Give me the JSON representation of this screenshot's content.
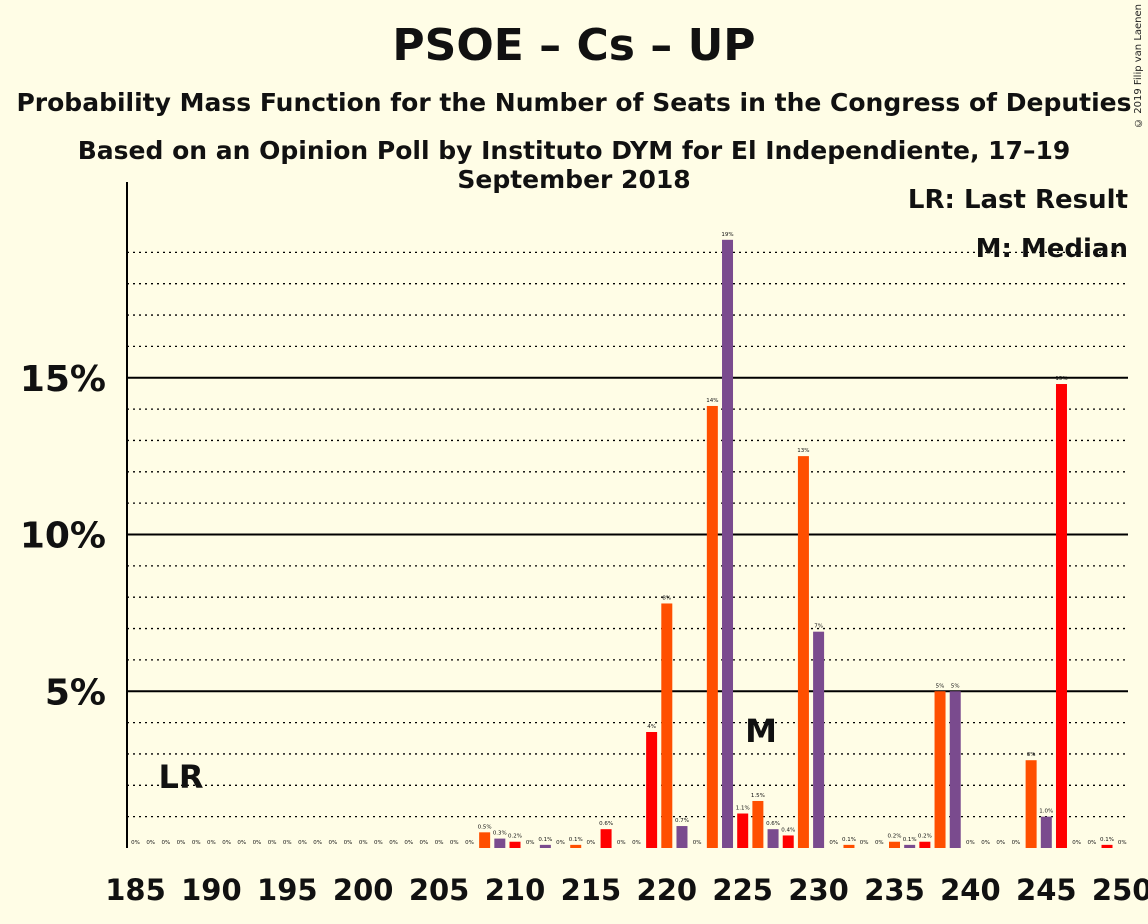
{
  "title": "PSOE – Cs – UP",
  "subtitle": "Probability Mass Function for the Number of Seats in the Congress of Deputies",
  "subtitle2": "Based on an Opinion Poll by Instituto DYM for El Independiente, 17–19 September 2018",
  "copyright": "© 2019 Filip van Laenen",
  "legend": {
    "lr": "LR: Last Result",
    "median": "M: Median"
  },
  "markers": {
    "lr_label": "LR",
    "lr_seat": 188,
    "median_label": "M",
    "median_seat": 227
  },
  "colors": {
    "red": "#ff0000",
    "orange": "#ff4f00",
    "purple": "#7a4b8e",
    "background": "#fffde6"
  },
  "chart_data": {
    "type": "bar",
    "xlabel": "",
    "ylabel": "",
    "xlim": [
      185,
      250
    ],
    "ylim": [
      0,
      21
    ],
    "y_ticks": [
      5,
      10,
      15
    ],
    "y_tick_labels": [
      "5%",
      "10%",
      "15%"
    ],
    "x_ticks": [
      185,
      190,
      195,
      200,
      205,
      210,
      215,
      220,
      225,
      230,
      235,
      240,
      245,
      250
    ],
    "gridlines": "dotted every 1%, solid at 5%, 10%, 15%",
    "bars": [
      {
        "x": 185,
        "value": 0,
        "label": "0%",
        "color": "red"
      },
      {
        "x": 186,
        "value": 0,
        "label": "0%",
        "color": "orange"
      },
      {
        "x": 187,
        "value": 0,
        "label": "0%",
        "color": "purple"
      },
      {
        "x": 188,
        "value": 0,
        "label": "0%",
        "color": "red"
      },
      {
        "x": 189,
        "value": 0,
        "label": "0%",
        "color": "orange"
      },
      {
        "x": 190,
        "value": 0,
        "label": "0%",
        "color": "purple"
      },
      {
        "x": 191,
        "value": 0,
        "label": "0%",
        "color": "red"
      },
      {
        "x": 192,
        "value": 0,
        "label": "0%",
        "color": "orange"
      },
      {
        "x": 193,
        "value": 0,
        "label": "0%",
        "color": "purple"
      },
      {
        "x": 194,
        "value": 0,
        "label": "0%",
        "color": "red"
      },
      {
        "x": 195,
        "value": 0,
        "label": "0%",
        "color": "orange"
      },
      {
        "x": 196,
        "value": 0,
        "label": "0%",
        "color": "purple"
      },
      {
        "x": 197,
        "value": 0,
        "label": "0%",
        "color": "red"
      },
      {
        "x": 198,
        "value": 0,
        "label": "0%",
        "color": "orange"
      },
      {
        "x": 199,
        "value": 0,
        "label": "0%",
        "color": "purple"
      },
      {
        "x": 200,
        "value": 0,
        "label": "0%",
        "color": "red"
      },
      {
        "x": 201,
        "value": 0,
        "label": "0%",
        "color": "orange"
      },
      {
        "x": 202,
        "value": 0,
        "label": "0%",
        "color": "purple"
      },
      {
        "x": 203,
        "value": 0,
        "label": "0%",
        "color": "red"
      },
      {
        "x": 204,
        "value": 0,
        "label": "0%",
        "color": "orange"
      },
      {
        "x": 205,
        "value": 0,
        "label": "0%",
        "color": "purple"
      },
      {
        "x": 206,
        "value": 0,
        "label": "0%",
        "color": "red"
      },
      {
        "x": 207,
        "value": 0,
        "label": "0%",
        "color": "orange"
      },
      {
        "x": 208,
        "value": 0.5,
        "label": "0.5%",
        "color": "orange"
      },
      {
        "x": 209,
        "value": 0.3,
        "label": "0.3%",
        "color": "purple"
      },
      {
        "x": 210,
        "value": 0.2,
        "label": "0.2%",
        "color": "red"
      },
      {
        "x": 211,
        "value": 0,
        "label": "0%",
        "color": "orange"
      },
      {
        "x": 212,
        "value": 0.1,
        "label": "0.1%",
        "color": "purple"
      },
      {
        "x": 213,
        "value": 0,
        "label": "0%",
        "color": "red"
      },
      {
        "x": 214,
        "value": 0.1,
        "label": "0.1%",
        "color": "orange"
      },
      {
        "x": 215,
        "value": 0,
        "label": "0%",
        "color": "purple"
      },
      {
        "x": 216,
        "value": 0.6,
        "label": "0.6%",
        "color": "red"
      },
      {
        "x": 217,
        "value": 0,
        "label": "0%",
        "color": "orange"
      },
      {
        "x": 218,
        "value": 0,
        "label": "0%",
        "color": "purple"
      },
      {
        "x": 219,
        "value": 3.7,
        "label": "4%",
        "color": "red"
      },
      {
        "x": 220,
        "value": 7.8,
        "label": "8%",
        "color": "orange"
      },
      {
        "x": 221,
        "value": 0.7,
        "label": "0.7%",
        "color": "purple"
      },
      {
        "x": 222,
        "value": 0,
        "label": "0%",
        "color": "red"
      },
      {
        "x": 223,
        "value": 14.1,
        "label": "14%",
        "color": "orange"
      },
      {
        "x": 224,
        "value": 19.4,
        "label": "19%",
        "color": "purple"
      },
      {
        "x": 225,
        "value": 1.1,
        "label": "1.1%",
        "color": "red"
      },
      {
        "x": 226,
        "value": 1.5,
        "label": "1.5%",
        "color": "orange"
      },
      {
        "x": 227,
        "value": 0.6,
        "label": "0.6%",
        "color": "purple"
      },
      {
        "x": 228,
        "value": 0.4,
        "label": "0.4%",
        "color": "red"
      },
      {
        "x": 229,
        "value": 12.5,
        "label": "13%",
        "color": "orange"
      },
      {
        "x": 230,
        "value": 6.9,
        "label": "7%",
        "color": "purple"
      },
      {
        "x": 231,
        "value": 0,
        "label": "0%",
        "color": "red"
      },
      {
        "x": 232,
        "value": 0.1,
        "label": "0.1%",
        "color": "orange"
      },
      {
        "x": 233,
        "value": 0,
        "label": "0%",
        "color": "purple"
      },
      {
        "x": 234,
        "value": 0,
        "label": "0%",
        "color": "red"
      },
      {
        "x": 235,
        "value": 0.2,
        "label": "0.2%",
        "color": "orange"
      },
      {
        "x": 236,
        "value": 0.1,
        "label": "0.1%",
        "color": "purple"
      },
      {
        "x": 237,
        "value": 0.2,
        "label": "0.2%",
        "color": "red"
      },
      {
        "x": 238,
        "value": 5.0,
        "label": "5%",
        "color": "orange"
      },
      {
        "x": 239,
        "value": 5.0,
        "label": "5%",
        "color": "purple"
      },
      {
        "x": 240,
        "value": 0,
        "label": "0%",
        "color": "red"
      },
      {
        "x": 241,
        "value": 0,
        "label": "0%",
        "color": "orange"
      },
      {
        "x": 242,
        "value": 0,
        "label": "0%",
        "color": "purple"
      },
      {
        "x": 243,
        "value": 0,
        "label": "0%",
        "color": "red"
      },
      {
        "x": 244,
        "value": 2.8,
        "label": "3%",
        "color": "orange"
      },
      {
        "x": 245,
        "value": 1.0,
        "label": "1.0%",
        "color": "purple"
      },
      {
        "x": 246,
        "value": 14.8,
        "label": "15%",
        "color": "red"
      },
      {
        "x": 247,
        "value": 0,
        "label": "0%",
        "color": "orange"
      },
      {
        "x": 248,
        "value": 0,
        "label": "0%",
        "color": "purple"
      },
      {
        "x": 249,
        "value": 0.1,
        "label": "0.1%",
        "color": "red"
      },
      {
        "x": 250,
        "value": 0,
        "label": "0%",
        "color": "orange"
      }
    ]
  }
}
